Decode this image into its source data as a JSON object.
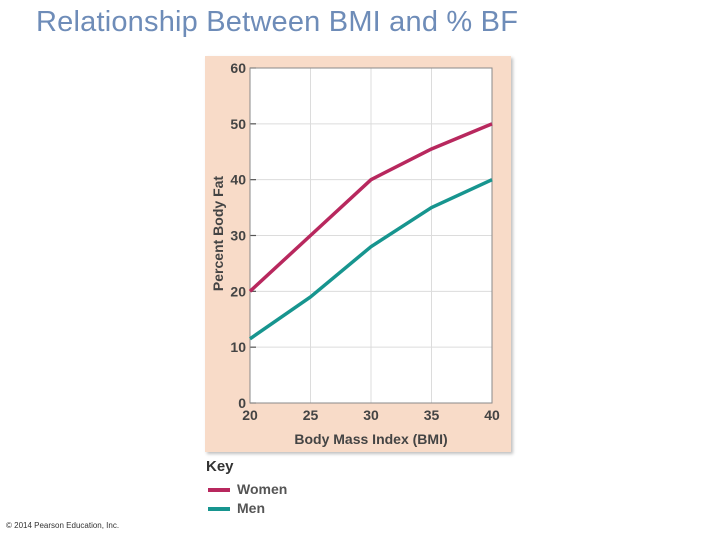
{
  "title": "Relationship Between BMI and % BF",
  "copyright": "© 2014 Pearson Education, Inc.",
  "key": {
    "title": "Key",
    "items": [
      {
        "label": "Women",
        "color": "#b8285e"
      },
      {
        "label": "Men",
        "color": "#17958f"
      }
    ]
  },
  "chart_data": {
    "type": "line",
    "x": [
      20,
      25,
      30,
      35,
      40
    ],
    "xlabel": "Body Mass Index (BMI)",
    "ylabel": "Percent Body Fat",
    "xlim": [
      20,
      40
    ],
    "ylim": [
      0,
      60
    ],
    "x_ticks": [
      20,
      25,
      30,
      35,
      40
    ],
    "y_ticks": [
      0,
      10,
      20,
      30,
      40,
      50,
      60
    ],
    "grid": true,
    "background_color": "#f8dbc8",
    "plot_color": "#ffffff",
    "series": [
      {
        "name": "Women",
        "color": "#b8285e",
        "values": [
          20,
          30,
          40,
          45.5,
          50
        ]
      },
      {
        "name": "Men",
        "color": "#17958f",
        "values": [
          11.5,
          19,
          28,
          35,
          40
        ]
      }
    ]
  }
}
